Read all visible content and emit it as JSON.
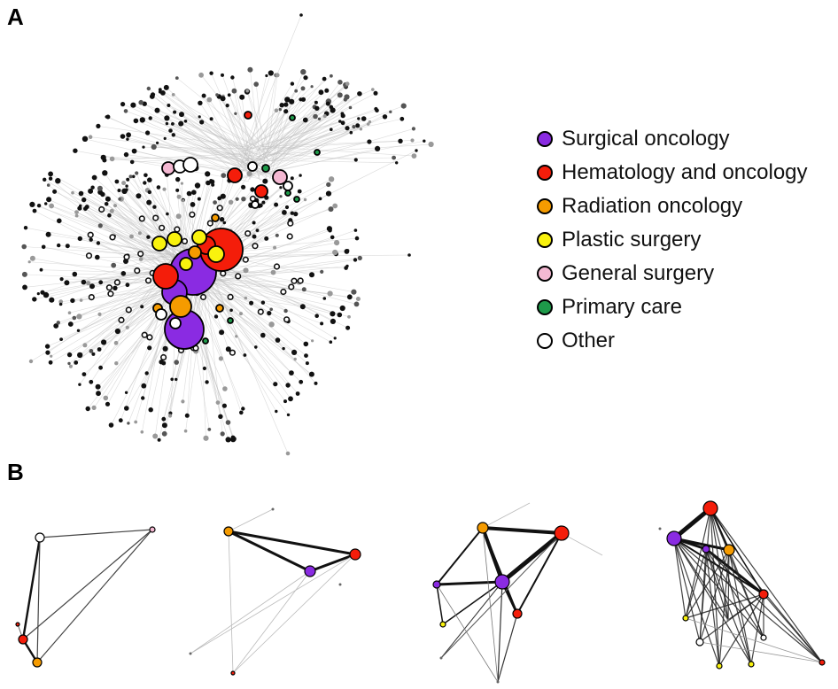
{
  "figure": {
    "panel_a_label": "A",
    "panel_b_label": "B"
  },
  "colors": {
    "surgical_oncology": "#8a2be2",
    "hematology_oncology": "#f41d0a",
    "radiation_oncology": "#f59b00",
    "plastic_surgery": "#f9f20e",
    "general_surgery": "#f4b8d2",
    "primary_care": "#1e9a4a",
    "other": "#ffffff",
    "unlabeled_node": "#111111",
    "edge": "#bfbfbf"
  },
  "legend": {
    "items": [
      {
        "label": "Surgical oncology",
        "color_key": "surgical_oncology"
      },
      {
        "label": "Hematology and oncology",
        "color_key": "hematology_oncology"
      },
      {
        "label": "Radiation oncology",
        "color_key": "radiation_oncology"
      },
      {
        "label": "Plastic surgery",
        "color_key": "plastic_surgery"
      },
      {
        "label": "General surgery",
        "color_key": "general_surgery"
      },
      {
        "label": "Primary care",
        "color_key": "primary_care"
      },
      {
        "label": "Other",
        "color_key": "other"
      }
    ]
  }
}
